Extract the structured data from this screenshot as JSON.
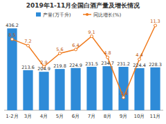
{
  "chart_data": {
    "type": "bar",
    "title": "2019年1-11月全国白酒产量及增长情况",
    "categories": [
      "1-2月",
      "3月",
      "4月",
      "5月",
      "6月",
      "7月",
      "8月",
      "9月",
      "10月",
      "11月"
    ],
    "series": [
      {
        "name": "产量(万千升)",
        "type": "bar",
        "color": "#2e8bd8",
        "values": [
          436.2,
          213.6,
          204.9,
          219.8,
          224.9,
          231.5,
          234.7,
          231.2,
          224.4,
          228.3
        ]
      },
      {
        "name": "同比增长(%)",
        "type": "line",
        "color": "#f07a1c",
        "marker": "circle",
        "axis": "y2",
        "values": [
          8.5,
          7.2,
          2.9,
          5.6,
          6.4,
          9.1,
          4.8,
          -3.4,
          4.4,
          11.3
        ]
      }
    ],
    "ylim": [
      0,
      470
    ],
    "y2lim": [
      -6,
      12
    ],
    "data_labels": true,
    "tick_labels": "x",
    "legend": "top",
    "grid": false
  }
}
